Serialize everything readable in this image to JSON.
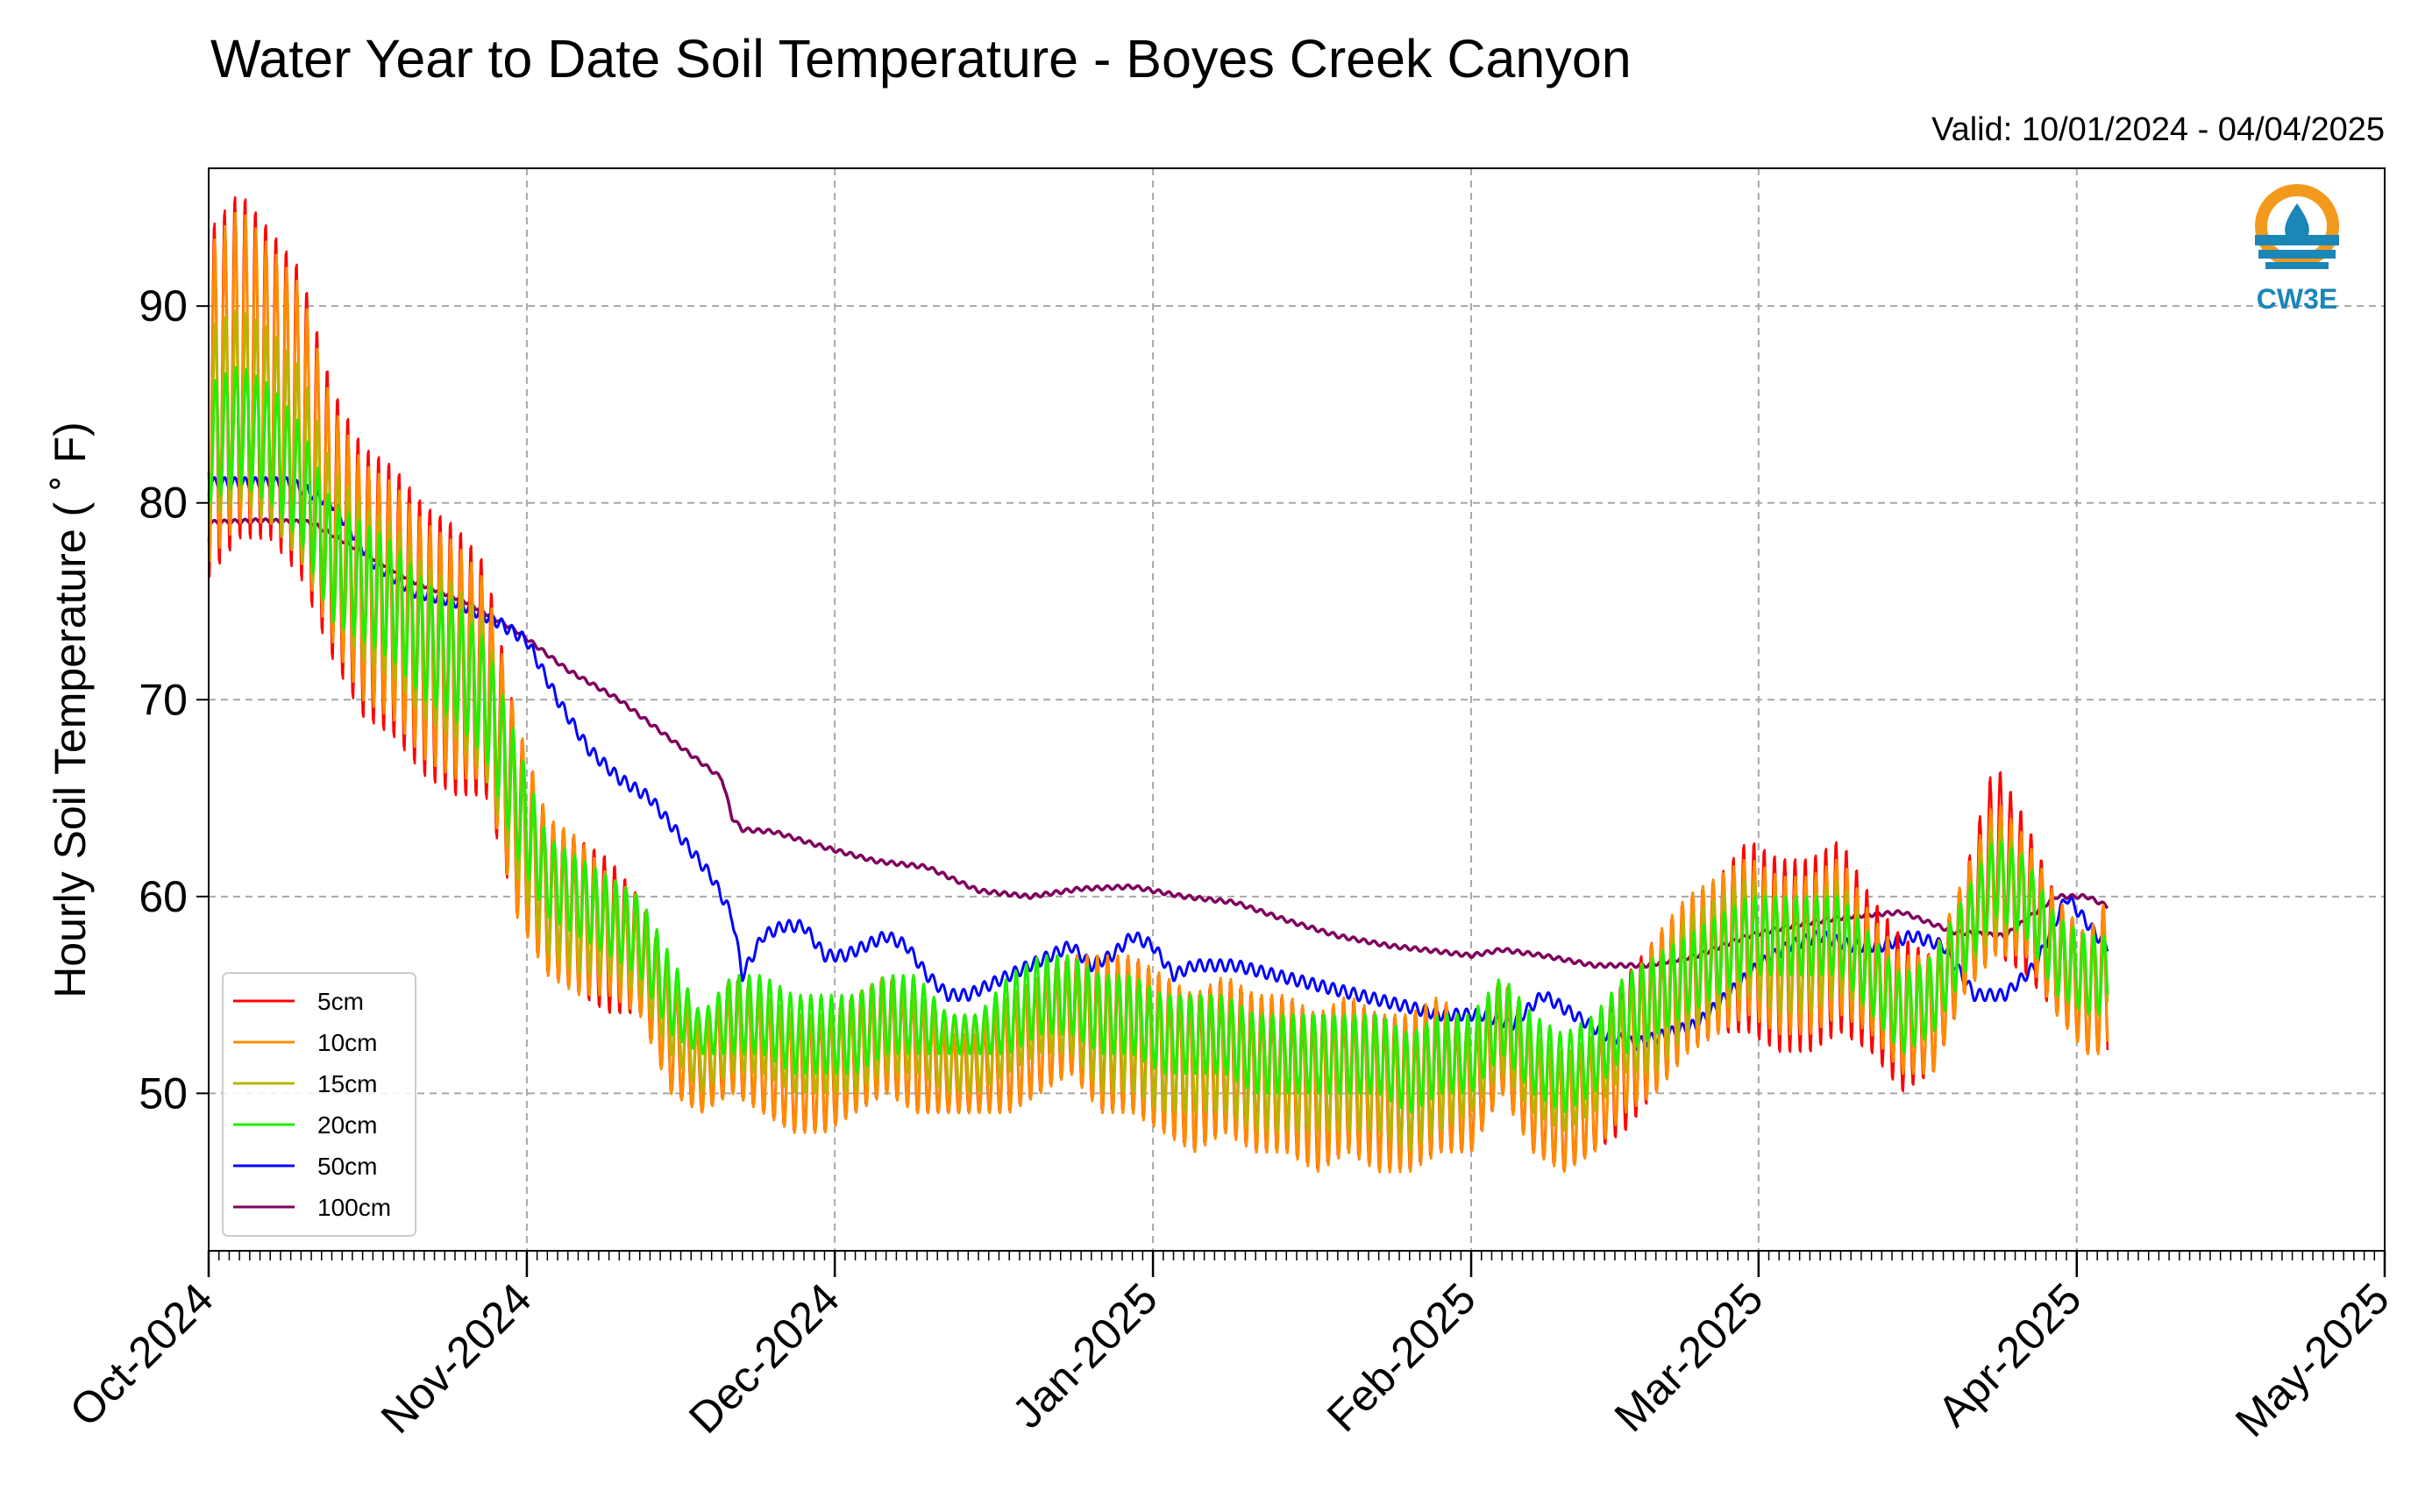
{
  "title": "Water Year to Date Soil Temperature - Boyes Creek Canyon",
  "valid_text": "Valid: 10/01/2024 - 04/04/2025",
  "logo": {
    "text": "CW3E",
    "icon": "water-drop-sun-icon",
    "colors": {
      "orange": "#f39a1e",
      "blue": "#1b86b8"
    }
  },
  "chart_data": {
    "type": "line",
    "title": "Water Year to Date Soil Temperature - Boyes Creek Canyon",
    "xlabel": "",
    "ylabel": "Hourly Soil Temperature ( ˚ F)",
    "x_unit": "days since 2024-10-01 (tick labels are month starts)",
    "xlim_labels": [
      "Oct-2024",
      "May-2025"
    ],
    "ylim": [
      42,
      97
    ],
    "yticks": [
      50,
      60,
      70,
      80,
      90
    ],
    "xticks": [
      {
        "label": "Oct-2024",
        "day": 0
      },
      {
        "label": "Nov-2024",
        "day": 31
      },
      {
        "label": "Dec-2024",
        "day": 61
      },
      {
        "label": "Jan-2025",
        "day": 92
      },
      {
        "label": "Feb-2025",
        "day": 123
      },
      {
        "label": "Mar-2025",
        "day": 151
      },
      {
        "label": "Apr-2025",
        "day": 182
      },
      {
        "label": "May-2025",
        "day": 212
      }
    ],
    "grid": true,
    "legend_position": "lower-left",
    "series": [
      {
        "name": "5cm",
        "color": "#ff0000",
        "x": [
          0,
          3,
          6,
          9,
          12,
          15,
          18,
          21,
          24,
          27,
          30,
          33,
          36,
          39,
          42,
          45,
          48,
          51,
          54,
          57,
          60,
          63,
          66,
          69,
          72,
          75,
          78,
          81,
          84,
          87,
          90,
          93,
          96,
          99,
          102,
          105,
          108,
          111,
          114,
          117,
          120,
          123,
          126,
          129,
          132,
          135,
          138,
          141,
          144,
          147,
          150,
          153,
          156,
          159,
          162,
          165,
          168,
          171,
          174,
          177,
          180,
          183,
          185
        ],
        "mean": [
          85,
          87,
          86,
          84,
          79,
          76,
          75,
          73,
          72,
          71,
          64,
          60,
          59,
          58,
          57,
          53,
          51,
          53,
          52,
          51,
          51,
          52,
          53,
          52,
          51,
          51,
          52,
          53,
          54,
          53,
          53,
          52,
          51,
          52,
          51,
          51,
          50,
          51,
          50,
          50,
          51,
          50,
          53,
          50,
          49,
          50,
          52,
          54,
          56,
          57,
          58,
          57,
          57,
          58,
          56,
          54,
          54,
          58,
          62,
          60,
          57,
          55,
          56
        ],
        "amp": [
          9,
          9,
          8,
          8,
          7,
          7,
          7,
          7,
          7,
          6,
          5,
          4,
          4,
          4,
          3,
          3,
          2,
          3,
          3,
          3,
          3,
          3,
          3,
          3,
          2,
          2,
          3,
          3,
          3,
          4,
          4,
          4,
          4,
          4,
          4,
          4,
          4,
          4,
          4,
          4,
          4,
          3,
          3,
          3,
          3,
          3,
          4,
          4,
          4,
          4,
          5,
          5,
          5,
          5,
          4,
          4,
          3,
          3,
          5,
          4,
          3,
          3,
          4
        ]
      },
      {
        "name": "10cm",
        "color": "#ff8c00",
        "x": [
          0,
          3,
          6,
          9,
          12,
          15,
          18,
          21,
          24,
          27,
          30,
          33,
          36,
          39,
          42,
          45,
          48,
          51,
          54,
          57,
          60,
          63,
          66,
          69,
          72,
          75,
          78,
          81,
          84,
          87,
          90,
          93,
          96,
          99,
          102,
          105,
          108,
          111,
          114,
          117,
          120,
          123,
          126,
          129,
          132,
          135,
          138,
          141,
          144,
          147,
          150,
          153,
          156,
          159,
          162,
          165,
          168,
          171,
          174,
          177,
          180,
          183,
          185
        ],
        "mean": [
          85,
          87,
          86,
          84,
          79,
          76,
          75,
          73,
          72,
          71,
          64,
          60,
          59,
          58,
          57,
          53,
          51,
          53,
          52,
          51,
          51,
          52,
          53,
          52,
          51,
          51,
          52,
          53,
          54,
          53,
          53,
          52,
          51,
          52,
          51,
          51,
          50,
          51,
          50,
          50,
          51,
          50,
          53,
          50,
          49,
          50,
          52,
          54,
          56,
          57,
          58,
          57,
          57,
          58,
          56,
          54,
          54,
          58,
          61,
          60,
          57,
          55,
          56
        ],
        "amp": [
          8,
          8,
          7,
          7,
          6,
          6,
          6,
          6,
          6,
          5,
          5,
          4,
          4,
          3,
          3,
          3,
          2,
          3,
          3,
          3,
          3,
          3,
          3,
          3,
          2,
          2,
          3,
          3,
          3,
          4,
          4,
          4,
          4,
          4,
          4,
          4,
          4,
          4,
          4,
          4,
          4,
          3,
          3,
          3,
          3,
          3,
          3,
          4,
          4,
          4,
          4,
          4,
          4,
          4,
          3,
          3,
          3,
          3,
          4,
          3,
          3,
          3,
          4
        ]
      },
      {
        "name": "15cm",
        "color": "#b8b400",
        "x": [
          0,
          3,
          6,
          9,
          12,
          15,
          18,
          21,
          24,
          27,
          30,
          33,
          36,
          39,
          42,
          45,
          48,
          51,
          54,
          57,
          60,
          63,
          66,
          69,
          72,
          75,
          78,
          81,
          84,
          87,
          90,
          93,
          96,
          99,
          102,
          105,
          108,
          111,
          114,
          117,
          120,
          123,
          126,
          129,
          132,
          135,
          138,
          141,
          144,
          147,
          150,
          153,
          156,
          159,
          162,
          165,
          168,
          171,
          174,
          177,
          180,
          183,
          185
        ],
        "mean": [
          84,
          85,
          84,
          82,
          78,
          76,
          75,
          73,
          72,
          70,
          64,
          60,
          59,
          58,
          57,
          54,
          52,
          53,
          53,
          52,
          52,
          52,
          53,
          53,
          52,
          52,
          53,
          54,
          54,
          53,
          53,
          52,
          52,
          52,
          51,
          51,
          51,
          51,
          51,
          50,
          51,
          51,
          53,
          51,
          50,
          51,
          53,
          54,
          56,
          57,
          58,
          57,
          57,
          58,
          56,
          54,
          55,
          58,
          61,
          60,
          57,
          56,
          56
        ],
        "amp": [
          5,
          5,
          5,
          5,
          4,
          4,
          4,
          4,
          4,
          4,
          3,
          3,
          3,
          2,
          2,
          2,
          2,
          2,
          2,
          2,
          2,
          2,
          2,
          2,
          2,
          2,
          2,
          2,
          2,
          3,
          3,
          3,
          3,
          3,
          3,
          3,
          3,
          3,
          3,
          3,
          3,
          2,
          2,
          2,
          2,
          2,
          2,
          3,
          3,
          3,
          3,
          3,
          3,
          3,
          2,
          2,
          2,
          2,
          3,
          2,
          2,
          2,
          2
        ]
      },
      {
        "name": "20cm",
        "color": "#22ee00",
        "x": [
          0,
          3,
          6,
          9,
          12,
          15,
          18,
          21,
          24,
          27,
          30,
          33,
          36,
          39,
          42,
          45,
          48,
          51,
          54,
          57,
          60,
          63,
          66,
          69,
          72,
          75,
          78,
          81,
          84,
          87,
          90,
          93,
          96,
          99,
          102,
          105,
          108,
          111,
          114,
          117,
          120,
          123,
          126,
          129,
          132,
          135,
          138,
          141,
          144,
          147,
          150,
          153,
          156,
          159,
          162,
          165,
          168,
          171,
          174,
          177,
          180,
          183,
          185
        ],
        "mean": [
          83,
          84,
          83,
          81,
          77,
          76,
          75,
          73,
          72,
          70,
          65,
          61,
          60,
          59,
          58,
          55,
          53,
          54,
          54,
          53,
          53,
          53,
          54,
          54,
          53,
          53,
          54,
          55,
          55,
          54,
          54,
          53,
          53,
          53,
          52,
          52,
          52,
          52,
          52,
          51,
          52,
          52,
          54,
          52,
          51,
          52,
          54,
          55,
          56,
          57,
          58,
          58,
          58,
          58,
          56,
          54,
          55,
          58,
          61,
          60,
          57,
          56,
          56
        ],
        "amp": [
          3,
          3,
          3,
          3,
          3,
          3,
          3,
          3,
          3,
          3,
          3,
          2,
          2,
          2,
          2,
          2,
          1,
          2,
          2,
          2,
          2,
          2,
          2,
          2,
          1,
          1,
          2,
          2,
          2,
          2,
          2,
          2,
          2,
          2,
          2,
          2,
          2,
          2,
          2,
          2,
          2,
          2,
          2,
          2,
          2,
          2,
          2,
          2,
          2,
          2,
          2,
          2,
          2,
          2,
          2,
          2,
          2,
          2,
          2,
          2,
          2,
          2,
          2
        ]
      },
      {
        "name": "50cm",
        "color": "#0000ff",
        "x": [
          0,
          4,
          8,
          12,
          16,
          20,
          24,
          28,
          31,
          34,
          37,
          40,
          43,
          46,
          49,
          51,
          52,
          54,
          56,
          58,
          60,
          62,
          64,
          66,
          68,
          70,
          72,
          74,
          76,
          78,
          80,
          82,
          84,
          86,
          88,
          90,
          92,
          94,
          96,
          100,
          104,
          108,
          112,
          116,
          120,
          124,
          127,
          130,
          133,
          136,
          139,
          142,
          145,
          148,
          151,
          154,
          157,
          160,
          163,
          166,
          169,
          172,
          175,
          178,
          181,
          184,
          185
        ],
        "mean": [
          81,
          81,
          81,
          80,
          77,
          75.5,
          75,
          74,
          73,
          70,
          67.5,
          66,
          65,
          63,
          61,
          59,
          56,
          58,
          58.5,
          58.5,
          57,
          57,
          57.5,
          58,
          57.5,
          56,
          55,
          55,
          55.5,
          56,
          56.5,
          57,
          57.5,
          56.5,
          57,
          58,
          57.5,
          56,
          56.5,
          56.5,
          56,
          55.5,
          55,
          54.5,
          54,
          54,
          53.5,
          55,
          54,
          53,
          52.5,
          53,
          53.5,
          55,
          56.5,
          57.5,
          58,
          57.5,
          57.5,
          58,
          57.5,
          55,
          55,
          56.5,
          60,
          58,
          57.5
        ],
        "amp": [
          0.3,
          0.3,
          0.3,
          0.3,
          0.3,
          0.3,
          0.3,
          0.3,
          0.3,
          0.3,
          0.3,
          0.3,
          0.3,
          0.3,
          0.3,
          0.3,
          0.3,
          0.3,
          0.3,
          0.3,
          0.3,
          0.3,
          0.3,
          0.3,
          0.3,
          0.3,
          0.3,
          0.3,
          0.3,
          0.3,
          0.3,
          0.3,
          0.3,
          0.3,
          0.3,
          0.3,
          0.3,
          0.3,
          0.3,
          0.3,
          0.3,
          0.3,
          0.3,
          0.3,
          0.3,
          0.3,
          0.3,
          0.3,
          0.3,
          0.3,
          0.3,
          0.3,
          0.3,
          0.3,
          0.3,
          0.3,
          0.3,
          0.3,
          0.3,
          0.3,
          0.3,
          0.3,
          0.3,
          0.3,
          0.3,
          0.3,
          0.3
        ]
      },
      {
        "name": "100cm",
        "color": "#7f005f",
        "x": [
          0,
          5,
          10,
          15,
          20,
          25,
          30,
          35,
          40,
          45,
          50,
          51,
          52,
          55,
          60,
          65,
          70,
          75,
          80,
          85,
          90,
          95,
          100,
          105,
          110,
          115,
          120,
          123,
          126,
          130,
          135,
          140,
          145,
          150,
          155,
          160,
          165,
          170,
          175,
          180,
          183,
          185
        ],
        "mean": [
          79,
          79.1,
          79,
          77.5,
          76,
          75,
          73.5,
          71.5,
          70,
          68,
          66,
          64,
          63.4,
          63.3,
          62.5,
          61.8,
          61.5,
          60.3,
          60,
          60.4,
          60.5,
          60,
          59.7,
          58.8,
          58,
          57.5,
          57.2,
          57,
          57.3,
          57,
          56.5,
          56.5,
          57,
          58,
          58.6,
          59,
          59.2,
          58.2,
          58,
          60,
          60,
          59.5
        ],
        "amp": [
          0.1,
          0.1,
          0.1,
          0.1,
          0.1,
          0.1,
          0.1,
          0.1,
          0.1,
          0.1,
          0.1,
          0.1,
          0.1,
          0.1,
          0.1,
          0.1,
          0.1,
          0.1,
          0.1,
          0.1,
          0.1,
          0.1,
          0.1,
          0.1,
          0.1,
          0.1,
          0.1,
          0.1,
          0.1,
          0.1,
          0.1,
          0.1,
          0.1,
          0.1,
          0.1,
          0.1,
          0.1,
          0.1,
          0.1,
          0.1,
          0.1,
          0.1
        ]
      }
    ]
  }
}
